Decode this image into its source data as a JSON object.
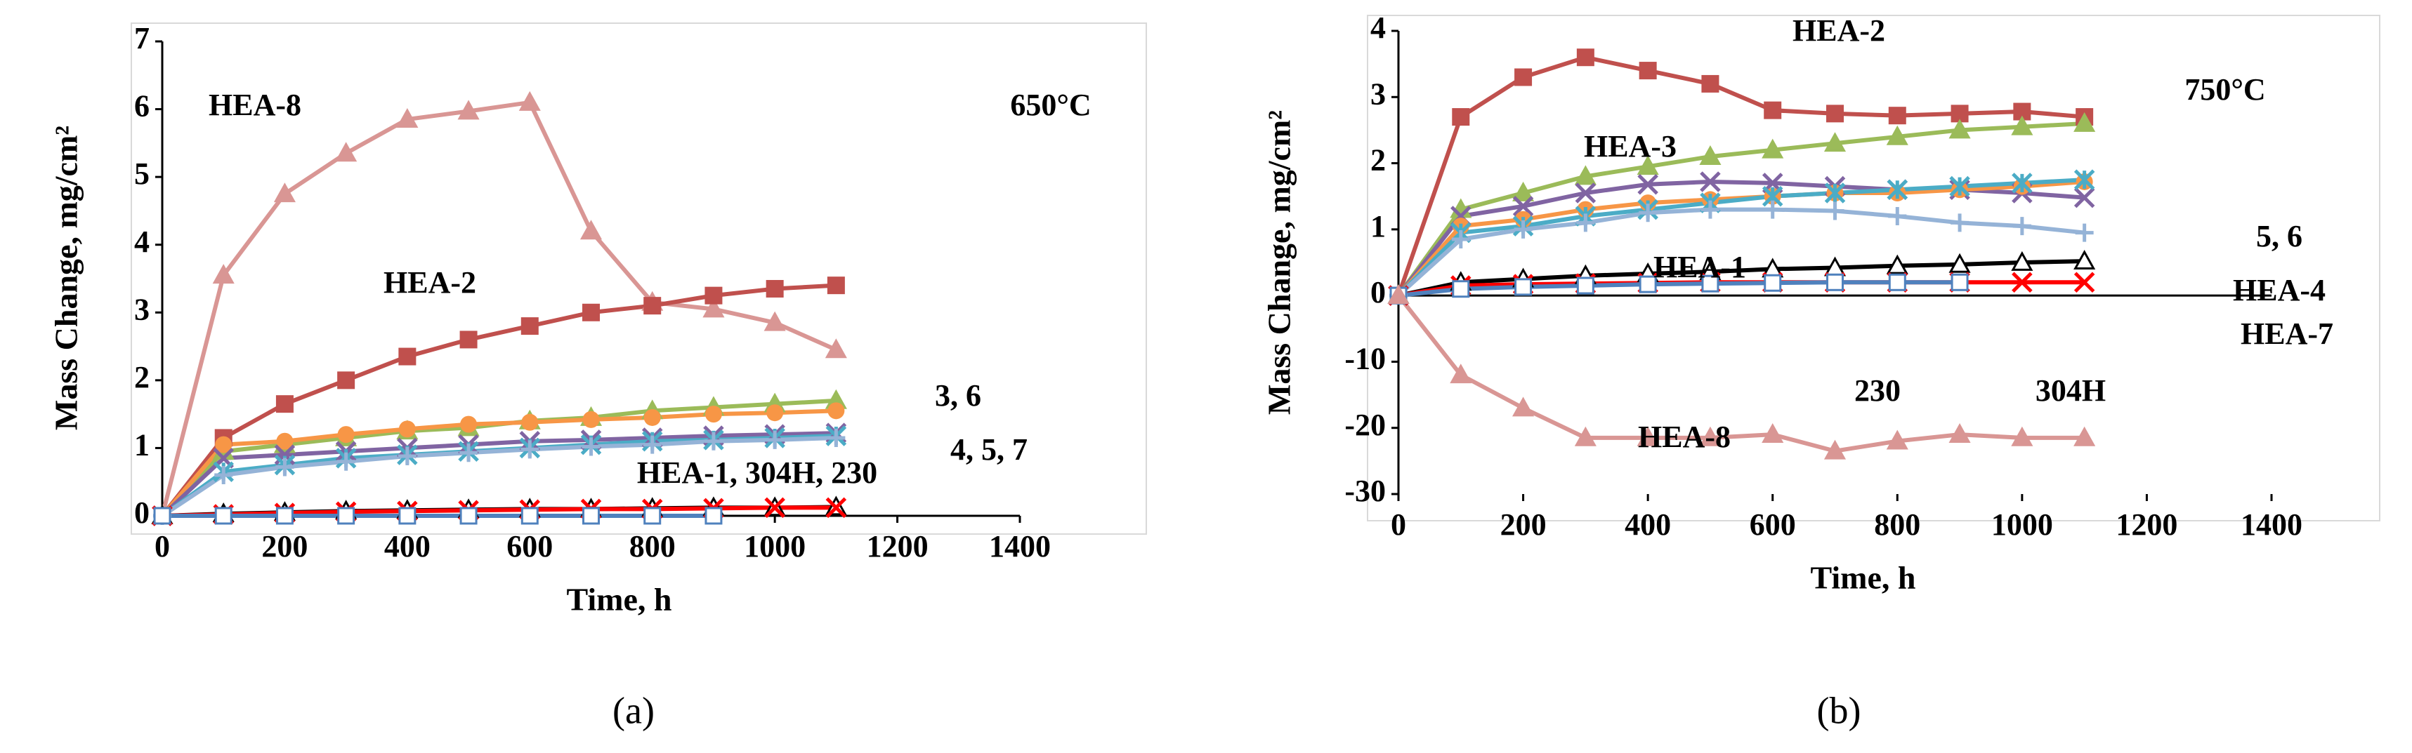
{
  "chart_data": [
    {
      "type": "line",
      "annotations": [
        "HEA-8",
        "HEA-2",
        "650°C",
        "3, 6",
        "4, 5, 7",
        "HEA-1, 304H, 230"
      ],
      "xlabel": "Time, h",
      "ylabel": "Mass Change, mg/cm²",
      "caption": "(a)",
      "x": [
        0,
        100,
        200,
        300,
        400,
        500,
        600,
        700,
        800,
        900,
        1000,
        1100
      ],
      "xlim": [
        0,
        1400
      ],
      "xticks": [
        0,
        200,
        400,
        600,
        800,
        1000,
        1200,
        1400
      ],
      "ylim": [
        0,
        7
      ],
      "yticks": [
        0,
        1,
        2,
        3,
        4,
        5,
        6,
        7
      ],
      "series": [
        {
          "color": "#d99694",
          "marker": "triangle",
          "values": [
            0,
            3.55,
            4.75,
            5.35,
            5.85,
            5.97,
            6.1,
            4.2,
            3.15,
            3.05,
            2.85,
            2.45
          ]
        },
        {
          "color": "#c0504d",
          "marker": "square",
          "values": [
            0,
            1.15,
            1.65,
            2.0,
            2.35,
            2.6,
            2.8,
            3.0,
            3.1,
            3.25,
            3.35,
            3.4
          ]
        },
        {
          "color": "#9bbb59",
          "marker": "triangle",
          "values": [
            0,
            0.95,
            1.05,
            1.15,
            1.25,
            1.3,
            1.4,
            1.45,
            1.55,
            1.6,
            1.65,
            1.7
          ]
        },
        {
          "color": "#f79646",
          "marker": "circle",
          "values": [
            0,
            1.05,
            1.1,
            1.2,
            1.28,
            1.35,
            1.38,
            1.42,
            1.45,
            1.5,
            1.52,
            1.55
          ]
        },
        {
          "color": "#8064a2",
          "marker": "x",
          "values": [
            0,
            0.85,
            0.9,
            0.95,
            1.0,
            1.05,
            1.1,
            1.12,
            1.15,
            1.18,
            1.2,
            1.22
          ]
        },
        {
          "color": "#4bacc6",
          "marker": "star",
          "values": [
            0,
            0.65,
            0.75,
            0.85,
            0.9,
            0.95,
            1.0,
            1.05,
            1.1,
            1.12,
            1.15,
            1.18
          ]
        },
        {
          "color": "#95b3d7",
          "marker": "plus",
          "values": [
            0,
            0.6,
            0.72,
            0.8,
            0.88,
            0.93,
            0.98,
            1.02,
            1.05,
            1.1,
            1.12,
            1.15
          ]
        },
        {
          "color": "#000000",
          "marker": "triangle-open",
          "values": [
            0,
            0.03,
            0.05,
            0.07,
            0.08,
            0.09,
            0.1,
            0.1,
            0.11,
            0.12,
            0.12,
            0.13
          ]
        },
        {
          "color": "#ff0000",
          "marker": "x",
          "values": [
            0,
            0.02,
            0.04,
            0.06,
            0.07,
            0.08,
            0.09,
            0.1,
            0.1,
            0.11,
            0.12,
            0.12
          ]
        },
        {
          "color": "#4f81bd",
          "marker": "square-open",
          "values": [
            0,
            0,
            0,
            0,
            0,
            0,
            0,
            0,
            0,
            0,
            null,
            null
          ]
        }
      ]
    },
    {
      "type": "line",
      "annotations": [
        "HEA-2",
        "750°C",
        "HEA-3",
        "5, 6",
        "HEA-4",
        "HEA-7",
        "HEA-1",
        "230",
        "304H",
        "HEA-8"
      ],
      "xlabel": "Time, h",
      "ylabel": "Mass Change, mg/cm²",
      "caption": "(b)",
      "x": [
        0,
        100,
        200,
        300,
        400,
        500,
        600,
        700,
        800,
        900,
        1000,
        1100
      ],
      "xlim": [
        0,
        1400
      ],
      "xticks": [
        0,
        200,
        400,
        600,
        800,
        1000,
        1200,
        1400
      ],
      "ylim": [
        -30,
        4
      ],
      "yticks": [
        -30,
        -20,
        -10,
        0,
        1,
        2,
        3,
        4
      ],
      "yscale": "piecewise",
      "series": [
        {
          "color": "#c0504d",
          "marker": "square",
          "values": [
            0,
            2.7,
            3.3,
            3.6,
            3.4,
            3.2,
            2.8,
            2.75,
            2.72,
            2.75,
            2.78,
            2.7
          ]
        },
        {
          "color": "#9bbb59",
          "marker": "triangle",
          "values": [
            0,
            1.3,
            1.55,
            1.8,
            1.95,
            2.1,
            2.2,
            2.3,
            2.4,
            2.5,
            2.55,
            2.6
          ]
        },
        {
          "color": "#8064a2",
          "marker": "x",
          "values": [
            0,
            1.2,
            1.35,
            1.55,
            1.68,
            1.72,
            1.7,
            1.65,
            1.6,
            1.6,
            1.55,
            1.48
          ]
        },
        {
          "color": "#f79646",
          "marker": "circle",
          "values": [
            0,
            1.05,
            1.15,
            1.3,
            1.4,
            1.45,
            1.5,
            1.55,
            1.55,
            1.6,
            1.65,
            1.72
          ]
        },
        {
          "color": "#4bacc6",
          "marker": "star",
          "values": [
            0,
            0.95,
            1.05,
            1.2,
            1.3,
            1.4,
            1.5,
            1.55,
            1.6,
            1.65,
            1.7,
            1.75
          ]
        },
        {
          "color": "#95b3d7",
          "marker": "plus",
          "values": [
            0,
            0.85,
            1.0,
            1.1,
            1.25,
            1.3,
            1.3,
            1.28,
            1.2,
            1.1,
            1.05,
            0.95
          ]
        },
        {
          "color": "#000000",
          "marker": "triangle-open",
          "values": [
            0,
            0.2,
            0.25,
            0.3,
            0.33,
            0.36,
            0.4,
            0.42,
            0.45,
            0.47,
            0.5,
            0.52
          ]
        },
        {
          "color": "#ff0000",
          "marker": "x",
          "values": [
            0,
            0.15,
            0.17,
            0.18,
            0.19,
            0.2,
            0.2,
            0.2,
            0.2,
            0.2,
            0.2,
            0.2
          ]
        },
        {
          "color": "#4f81bd",
          "marker": "square-open",
          "values": [
            0,
            0.1,
            0.13,
            0.15,
            0.17,
            0.18,
            0.19,
            0.2,
            0.2,
            0.2,
            null,
            null
          ]
        },
        {
          "color": "#d99694",
          "marker": "triangle",
          "values": [
            0,
            -12,
            -17,
            -21.5,
            -21.5,
            -21.5,
            -21,
            -23.5,
            -22,
            -21,
            -21.5,
            -21.5
          ]
        }
      ]
    }
  ]
}
